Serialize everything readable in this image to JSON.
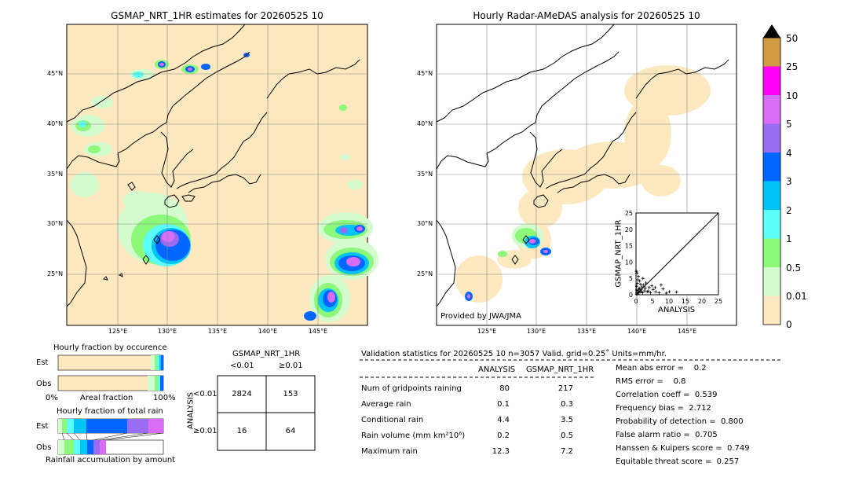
{
  "colors": {
    "ocean_dry": "#fde8c0",
    "land_outline": "#000000",
    "grid": "#888888",
    "light_green": "#d4fccf",
    "green": "#8cf97a",
    "cyan_light": "#5cfff7",
    "cyan": "#00c4f7",
    "blue": "#0066ff",
    "blue_purple": "#9a6cf2",
    "violet": "#d96cf5",
    "magenta": "#ff00f7",
    "orange": "#d39a44"
  },
  "left_map": {
    "title": "GSMAP_NRT_1HR estimates for 20260525 10",
    "lat_labels": [
      "45°N",
      "40°N",
      "35°N",
      "30°N",
      "25°N"
    ],
    "lon_labels": [
      "125°E",
      "130°E",
      "135°E",
      "140°E",
      "145°E"
    ]
  },
  "right_map": {
    "title": "Hourly Radar-AMeDAS analysis for 20260525 10",
    "lat_labels": [
      "45°N",
      "40°N",
      "35°N",
      "30°N",
      "25°N"
    ],
    "lon_labels": [
      "125°E",
      "130°E",
      "135°E",
      "140°E",
      "145°E"
    ],
    "credit": "Provided by JWA/JMA"
  },
  "colorbar": {
    "labels": [
      "50",
      "25",
      "10",
      "5",
      "4",
      "3",
      "2",
      "1",
      "0.5",
      "0.01",
      "0"
    ],
    "colors": [
      "#d39a44",
      "#ff00f7",
      "#d96cf5",
      "#9a6cf2",
      "#0066ff",
      "#00c4f7",
      "#5cfff7",
      "#8cf97a",
      "#d4fccf",
      "#fde8c0"
    ]
  },
  "scatter": {
    "xlabel": "ANALYSIS",
    "ylabel": "GSMAP_NRT_1HR",
    "ticks": [
      "0",
      "5",
      "10",
      "15",
      "20",
      "25"
    ]
  },
  "chart_data": [
    {
      "type": "scatter",
      "xlabel": "ANALYSIS",
      "ylabel": "GSMAP_NRT_1HR",
      "xlim": [
        0,
        25
      ],
      "ylim": [
        0,
        25
      ],
      "points": [
        [
          0.2,
          0.1
        ],
        [
          0.3,
          0.5
        ],
        [
          0.5,
          0.3
        ],
        [
          0.6,
          1.2
        ],
        [
          0.8,
          0.6
        ],
        [
          1.0,
          2.0
        ],
        [
          1.2,
          0.8
        ],
        [
          0.4,
          3.5
        ],
        [
          0.7,
          5.6
        ],
        [
          1.1,
          4.2
        ],
        [
          1.5,
          1.5
        ],
        [
          2.0,
          0.6
        ],
        [
          2.3,
          3.0
        ],
        [
          0.2,
          2.6
        ],
        [
          0.3,
          6.6
        ],
        [
          1.8,
          2.4
        ],
        [
          2.6,
          1.2
        ],
        [
          3.0,
          3.6
        ],
        [
          3.4,
          0.9
        ],
        [
          4.0,
          2.2
        ],
        [
          4.4,
          0.6
        ],
        [
          5.2,
          1.6
        ],
        [
          6.0,
          0.9
        ],
        [
          7.0,
          0.6
        ],
        [
          7.6,
          3.0
        ],
        [
          8.2,
          1.8
        ],
        [
          9.2,
          0.5
        ],
        [
          10.1,
          0.9
        ],
        [
          12.3,
          0.8
        ],
        [
          0.1,
          7.2
        ],
        [
          0.9,
          1.7
        ],
        [
          1.4,
          3.2
        ],
        [
          2.8,
          2.0
        ],
        [
          3.7,
          1.1
        ],
        [
          4.8,
          2.7
        ],
        [
          5.8,
          2.2
        ],
        [
          0.5,
          4.6
        ],
        [
          1.7,
          0.9
        ],
        [
          2.1,
          5.0
        ],
        [
          0.2,
          1.4
        ]
      ]
    },
    {
      "type": "table",
      "title": "GSMAP_NRT_1HR",
      "col_labels": [
        "<0.01",
        "≥0.01"
      ],
      "row_axis": "ANALYSIS",
      "row_labels": [
        "<0.01",
        "≥0.01"
      ],
      "cells": [
        [
          2824,
          153
        ],
        [
          16,
          64
        ]
      ]
    },
    {
      "type": "bar",
      "title": "Hourly fraction by occurence",
      "categories": [
        "Est",
        "Obs"
      ],
      "xlabel": "Areal fraction",
      "xticks": [
        "0%",
        "100%"
      ]
    },
    {
      "type": "bar",
      "title": "Hourly fraction of total rain",
      "categories": [
        "Est",
        "Obs"
      ],
      "xlabel": "Rainfall accumulation by amount"
    }
  ],
  "contingency": {
    "title": "GSMAP_NRT_1HR",
    "col_lt": "<0.01",
    "col_ge": "≥0.01",
    "row_axis": "ANALYSIS",
    "row_lt": "<0.01",
    "row_ge": "≥0.01",
    "c11": "2824",
    "c12": "153",
    "c21": "16",
    "c22": "64"
  },
  "fraction": {
    "occ_title": "Hourly fraction by occurence",
    "est": "Est",
    "obs": "Obs",
    "pct0": "0%",
    "pct100": "100%",
    "areal": "Areal fraction",
    "rain_title": "Hourly fraction of total rain",
    "accum": "Rainfall accumulation by amount"
  },
  "validation": {
    "header": "Validation statistics for 20260525 10  n=3057 Valid. grid=0.25˚ Units=mm/hr.",
    "col_analysis": "ANALYSIS",
    "col_gsmap": "GSMAP_NRT_1HR",
    "rows": [
      {
        "label": "Num of gridpoints raining",
        "a": "80",
        "g": "217"
      },
      {
        "label": "Average rain",
        "a": "0.1",
        "g": "0.3"
      },
      {
        "label": "Conditional rain",
        "a": "4.4",
        "g": "3.5"
      },
      {
        "label": "Rain volume (mm km²10⁶)",
        "a": "0.2",
        "g": "0.5"
      },
      {
        "label": "Maximum rain",
        "a": "12.3",
        "g": "7.2"
      }
    ],
    "scores": [
      "Mean abs error =    0.2",
      "RMS error =    0.8",
      "Correlation coeff =  0.539",
      "Frequency bias =  2.712",
      "Probability of detection =  0.800",
      "False alarm ratio =  0.705",
      "Hanssen & Kuipers score =  0.749",
      "Equitable threat score =  0.257"
    ]
  }
}
